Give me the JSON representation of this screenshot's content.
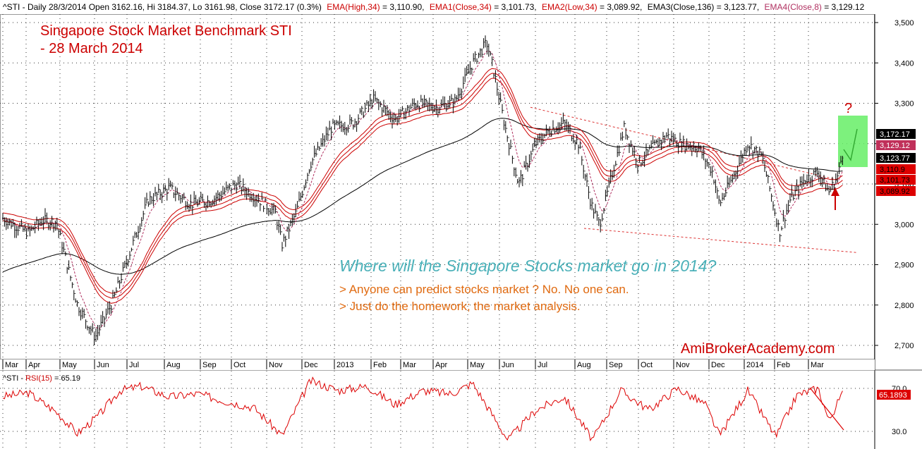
{
  "header": {
    "line1_plain": "^STI - Daily 28/3/2014 Open 3162.16, Hi 3184.37, Lo 3161.98, Close 3172.17 (0.3%)",
    "ema_high": "EMA(High,34)",
    "ema_high_val": " = 3,110.90,",
    "ema1": "EMA1(Close,34)",
    "ema1_val": " = 3,101.73,",
    "ema2": "EMA2(Low,34)",
    "ema2_val": " = 3,089.92,",
    "ema3": "EMA3(Close,136)",
    "ema3_val": " = 3,123.77,",
    "ema4": "EMA4(Close,8)",
    "ema4_val": " = 3,129.12"
  },
  "annotations": {
    "title_line1": "Singapore Stock Market Benchmark STI",
    "title_line2": "- 28 March 2014",
    "question": "Where will the Singapore Stocks market go in 2014?",
    "point1": "> Anyone can predict stocks market ? No. No one can.",
    "point2": "> Just do the homework; the market analysis.",
    "brand": "AmiBrokerAcademy.com",
    "qmark": "?"
  },
  "rsi_panel": {
    "label_prefix": "^STI - ",
    "label_name": "RSI(15)",
    "label_value": " = 65.19",
    "current_badge": "65.1893"
  },
  "colors": {
    "price_bars": "#000000",
    "ema_red": "#cc0000",
    "ema_fast": "#b03060",
    "ema_long": "#000000",
    "rsi_line": "#dd0000",
    "title_red": "#cc0000",
    "question_teal": "#4ab0b8",
    "point_orange": "#e06a10",
    "highlight_green": "#66ee66"
  },
  "chart_data": {
    "type": "ohlc",
    "price_ylim": [
      2680,
      3520
    ],
    "price_ticks": [
      "3,500",
      "3,400",
      "3,300",
      "3,200",
      "3,100",
      "3,000",
      "2,900",
      "2,800",
      "2,700"
    ],
    "price_tick_values": [
      3500,
      3400,
      3300,
      3200,
      3100,
      3000,
      2900,
      2800,
      2700
    ],
    "x_ticks": [
      "Mar",
      "Apr",
      "May",
      "Jun",
      "Jul",
      "Aug",
      "Sep",
      "Oct",
      "Nov",
      "Dec",
      "2013",
      "Feb",
      "Mar",
      "Apr",
      "May",
      "Jun",
      "Jul",
      "Aug",
      "Sep",
      "Oct",
      "Nov",
      "Dec",
      "2014",
      "Feb",
      "Mar"
    ],
    "price_anchors": [
      [
        0,
        3020
      ],
      [
        18,
        3000
      ],
      [
        40,
        2980
      ],
      [
        60,
        3010
      ],
      [
        80,
        3005
      ],
      [
        110,
        2800
      ],
      [
        135,
        2720
      ],
      [
        160,
        2810
      ],
      [
        190,
        2960
      ],
      [
        210,
        3060
      ],
      [
        240,
        3090
      ],
      [
        270,
        3050
      ],
      [
        300,
        3060
      ],
      [
        335,
        3100
      ],
      [
        360,
        3070
      ],
      [
        390,
        3030
      ],
      [
        400,
        2950
      ],
      [
        420,
        3030
      ],
      [
        440,
        3150
      ],
      [
        470,
        3240
      ],
      [
        500,
        3250
      ],
      [
        530,
        3310
      ],
      [
        560,
        3260
      ],
      [
        590,
        3300
      ],
      [
        620,
        3290
      ],
      [
        645,
        3305
      ],
      [
        670,
        3400
      ],
      [
        690,
        3450
      ],
      [
        700,
        3380
      ],
      [
        715,
        3250
      ],
      [
        735,
        3100
      ],
      [
        760,
        3200
      ],
      [
        780,
        3235
      ],
      [
        800,
        3250
      ],
      [
        820,
        3200
      ],
      [
        838,
        3050
      ],
      [
        850,
        3000
      ],
      [
        870,
        3140
      ],
      [
        885,
        3240
      ],
      [
        905,
        3150
      ],
      [
        925,
        3190
      ],
      [
        945,
        3220
      ],
      [
        965,
        3200
      ],
      [
        990,
        3190
      ],
      [
        1010,
        3130
      ],
      [
        1020,
        3050
      ],
      [
        1040,
        3120
      ],
      [
        1060,
        3200
      ],
      [
        1080,
        3170
      ],
      [
        1095,
        3060
      ],
      [
        1105,
        2980
      ],
      [
        1120,
        3060
      ],
      [
        1140,
        3110
      ],
      [
        1160,
        3130
      ],
      [
        1175,
        3080
      ],
      [
        1188,
        3120
      ],
      [
        1194,
        3175
      ]
    ],
    "rsi_ylim": [
      20,
      80
    ],
    "rsi_ticks": [
      "70.0",
      "30.0"
    ],
    "rsi_tick_values": [
      70,
      30
    ],
    "rsi_anchors": [
      [
        0,
        62
      ],
      [
        40,
        66
      ],
      [
        80,
        48
      ],
      [
        110,
        28
      ],
      [
        140,
        45
      ],
      [
        170,
        68
      ],
      [
        200,
        72
      ],
      [
        240,
        62
      ],
      [
        280,
        65
      ],
      [
        320,
        58
      ],
      [
        360,
        52
      ],
      [
        400,
        26
      ],
      [
        440,
        77
      ],
      [
        480,
        68
      ],
      [
        520,
        72
      ],
      [
        560,
        55
      ],
      [
        600,
        68
      ],
      [
        640,
        65
      ],
      [
        670,
        75
      ],
      [
        720,
        22
      ],
      [
        760,
        50
      ],
      [
        800,
        62
      ],
      [
        840,
        22
      ],
      [
        880,
        68
      ],
      [
        920,
        50
      ],
      [
        960,
        70
      ],
      [
        1000,
        55
      ],
      [
        1020,
        26
      ],
      [
        1060,
        68
      ],
      [
        1100,
        25
      ],
      [
        1130,
        64
      ],
      [
        1160,
        70
      ],
      [
        1175,
        40
      ],
      [
        1194,
        65
      ]
    ],
    "ema_values": {
      "EMA(High,34)": 3110.9,
      "EMA1(Close,34)": 3101.73,
      "EMA2(Low,34)": 3089.92,
      "EMA3(Close,136)": 3123.77,
      "EMA4(Close,8)": 3129.12
    },
    "last_values": {
      "close": 3172.17,
      "labels": [
        "3,172.17",
        "3,129.12",
        "3,123.77",
        "3,110.9",
        "3,101.73",
        "3,089.92"
      ]
    },
    "rsi_last": 65.19,
    "trendlines": [
      [
        [
          752,
          3290
        ],
        [
          1188,
          3110
        ]
      ],
      [
        [
          828,
          2990
        ],
        [
          1215,
          2930
        ]
      ]
    ],
    "grid": "dotted"
  }
}
